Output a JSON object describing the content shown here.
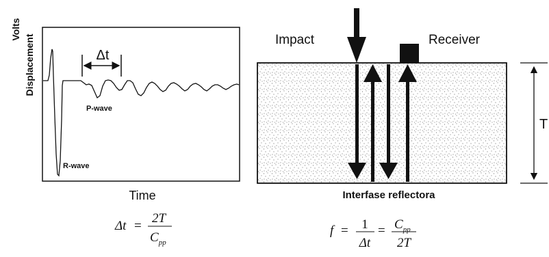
{
  "left_panel": {
    "y_label_line1": "Volts",
    "y_label_line2": "Displacement",
    "x_label": "Time",
    "delta_t": "Δt",
    "p_wave": "P-wave",
    "r_wave": "R-wave"
  },
  "right_panel": {
    "impact": "Impact",
    "receiver": "Receiver",
    "thickness": "T",
    "interface": "Interfase reflectora"
  },
  "formulas": {
    "left": {
      "lhs": "Δt",
      "eq": "=",
      "num": "2T",
      "den_main": "C",
      "den_sub": "pp"
    },
    "right": {
      "lhs": "f",
      "eq1": "=",
      "num1": "1",
      "den1": "Δt",
      "eq2": "=",
      "num2_main": "C",
      "num2_sub": "pp",
      "den2": "2T"
    }
  },
  "colors": {
    "ink": "#111111",
    "speckle": "#444444",
    "background": "#ffffff"
  }
}
